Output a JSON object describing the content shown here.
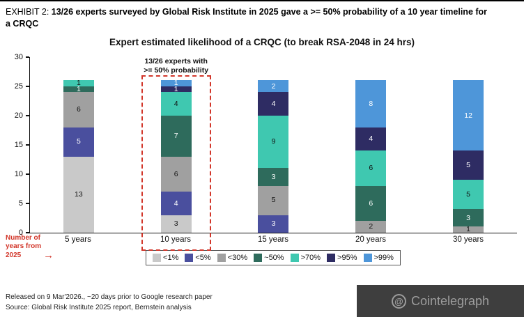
{
  "header": {
    "prefix": "EXHIBIT 2: ",
    "title": "13/26 experts surveyed by Global Risk Institute in 2025 gave a >= 50% probability of a 10 year timeline for a CRQC"
  },
  "chart_data": {
    "type": "bar",
    "stacked": true,
    "title": "Expert estimated likelihood of a CRQC (to break RSA-2048 in 24 hrs)",
    "categories": [
      "5 years",
      "10 years",
      "15 years",
      "20 years",
      "30 years"
    ],
    "series": [
      {
        "name": "<1%",
        "color": "#c9c9c9",
        "values": [
          13,
          3,
          0,
          0,
          0
        ]
      },
      {
        "name": "<5%",
        "color": "#4a4f9e",
        "values": [
          5,
          4,
          3,
          0,
          0
        ]
      },
      {
        "name": "<30%",
        "color": "#a0a0a0",
        "values": [
          6,
          6,
          5,
          2,
          1
        ]
      },
      {
        "name": "~50%",
        "color": "#2e6b5c",
        "values": [
          1,
          7,
          3,
          6,
          3
        ]
      },
      {
        "name": ">70%",
        "color": "#3fc8b0",
        "values": [
          1,
          4,
          9,
          6,
          5
        ]
      },
      {
        "name": ">95%",
        "color": "#2e2c63",
        "values": [
          0,
          1,
          4,
          4,
          5
        ]
      },
      {
        "name": ">99%",
        "color": "#4e96d9",
        "values": [
          0,
          1,
          2,
          8,
          12
        ]
      }
    ],
    "ylim": [
      0,
      30
    ],
    "yticks": [
      0,
      5,
      10,
      15,
      20,
      25,
      30
    ],
    "grid": false,
    "legend_position": "bottom",
    "annotation": {
      "line1": "13/26 experts with",
      "line2": ">= 50% probability"
    },
    "highlight_category_index": 1,
    "highlight_color": "#d2362a"
  },
  "axis_note": {
    "line1": "Number of",
    "line2": "years from",
    "line3": "2025",
    "arrow": "→"
  },
  "footer": {
    "line1": "Released on 9 Mar'2026., ~20 days prior to Google research paper",
    "line2": "Source: Global Risk Institute 2025 report, Bernstein analysis"
  },
  "watermark": {
    "symbol": "@",
    "text": "Cointelegraph"
  }
}
